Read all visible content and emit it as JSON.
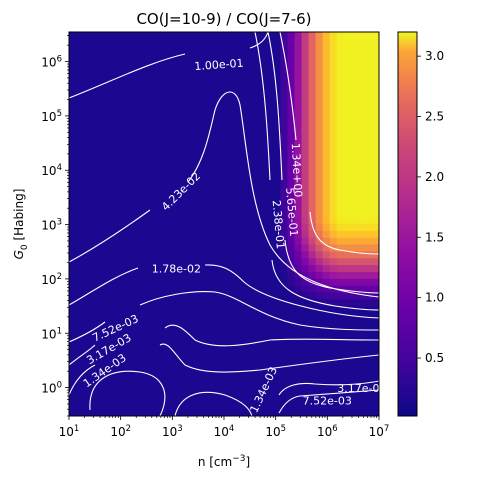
{
  "chart_data": {
    "type": "heatmap",
    "title": "CO(J=10-9) / CO(J=7-6)",
    "xlabel_base": "n [cm",
    "xlabel_exp": "−3",
    "xlabel_end": "]",
    "ylabel_sym": "G",
    "ylabel_sub": "0",
    "ylabel_rest": " [Habing]",
    "x_scale": "log",
    "y_scale": "log",
    "xlim": [
      10,
      10000000
    ],
    "ylim": [
      0.3,
      3500000
    ],
    "x_ticks": [
      {
        "base": "10",
        "exp": "1",
        "value": 10
      },
      {
        "base": "10",
        "exp": "2",
        "value": 100
      },
      {
        "base": "10",
        "exp": "3",
        "value": 1000
      },
      {
        "base": "10",
        "exp": "4",
        "value": 10000
      },
      {
        "base": "10",
        "exp": "5",
        "value": 100000
      },
      {
        "base": "10",
        "exp": "6",
        "value": 1000000
      },
      {
        "base": "10",
        "exp": "7",
        "value": 10000000
      }
    ],
    "y_ticks": [
      {
        "base": "10",
        "exp": "0",
        "value": 1
      },
      {
        "base": "10",
        "exp": "1",
        "value": 10
      },
      {
        "base": "10",
        "exp": "2",
        "value": 100
      },
      {
        "base": "10",
        "exp": "3",
        "value": 1000
      },
      {
        "base": "10",
        "exp": "4",
        "value": 10000
      },
      {
        "base": "10",
        "exp": "5",
        "value": 100000
      },
      {
        "base": "10",
        "exp": "6",
        "value": 1000000
      }
    ],
    "colormap": "plasma",
    "colorbar": {
      "range": [
        0.02,
        3.2
      ],
      "ticks": [
        {
          "label": "0.5",
          "value": 0.5
        },
        {
          "label": "1.0",
          "value": 1.0
        },
        {
          "label": "1.5",
          "value": 1.5
        },
        {
          "label": "2.0",
          "value": 2.0
        },
        {
          "label": "2.5",
          "value": 2.5
        },
        {
          "label": "3.0",
          "value": 3.0
        }
      ]
    },
    "contour_color": "#ffffff",
    "contour_labels": [
      {
        "text": "1.00e-01",
        "x": 8000,
        "y": 850000,
        "angle": -4
      },
      {
        "text": "4.23e-02",
        "x": 1500,
        "y": 4000,
        "angle": -45
      },
      {
        "text": "1.78e-02",
        "x": 1200,
        "y": 150,
        "angle": 0
      },
      {
        "text": "1.34e+00",
        "x": 250000,
        "y": 10000,
        "angle": 87
      },
      {
        "text": "5.65e-01",
        "x": 200000,
        "y": 1700,
        "angle": 85
      },
      {
        "text": "2.38e-01",
        "x": 110000,
        "y": 1000,
        "angle": 85
      },
      {
        "text": "7.52e-03",
        "x": 80,
        "y": 12,
        "angle": -25
      },
      {
        "text": "3.17e-03",
        "x": 60,
        "y": 5,
        "angle": -30
      },
      {
        "text": "1.34e-03",
        "x": 50,
        "y": 2,
        "angle": -35
      },
      {
        "text": "1.34e-03",
        "x": 60000,
        "y": 0.9,
        "angle": -65
      },
      {
        "text": "7.52e-03",
        "x": 1000000,
        "y": 0.55,
        "angle": 0
      },
      {
        "text": "3.17e-0",
        "x": 4000000,
        "y": 0.95,
        "angle": 0
      }
    ]
  }
}
